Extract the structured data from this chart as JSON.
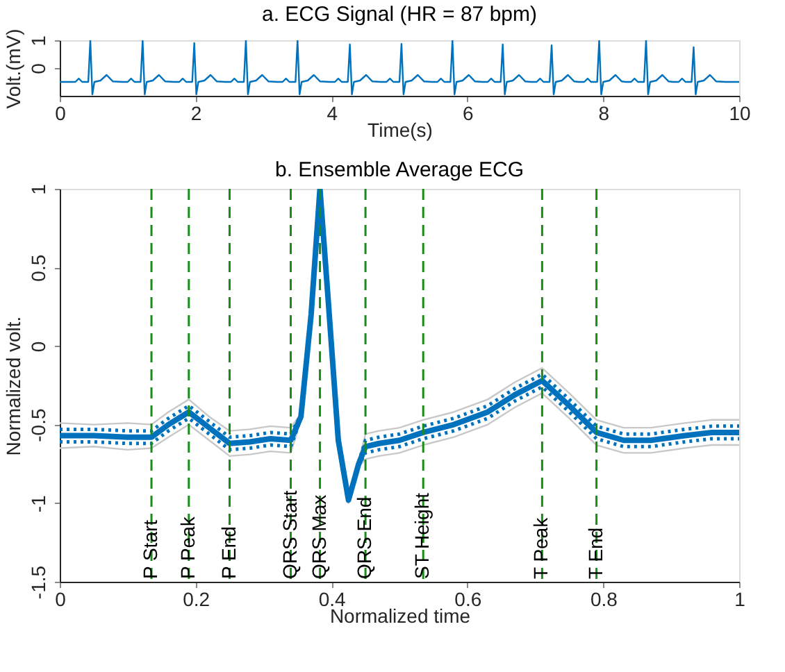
{
  "chart_data": [
    {
      "type": "line",
      "title": "a. ECG Signal (HR = 87 bpm)",
      "xlabel": "Time(s)",
      "ylabel": "Volt.(mV)",
      "xlim": [
        0,
        10
      ],
      "ylim": [
        -1,
        1
      ],
      "xticks": [
        0,
        2,
        4,
        6,
        8,
        10
      ],
      "yticks": [
        0,
        1
      ],
      "grid": false,
      "series": [
        {
          "color": "#0072bd",
          "line_style": "solid",
          "x": [
            0,
            0.15,
            0.23,
            0.28,
            0.33,
            0.42,
            0.45,
            0.48,
            0.51,
            0.6,
            0.69,
            0.78,
            0.92,
            1,
            1.05,
            1.1,
            1.19,
            1.22,
            1.25,
            1.28,
            1.37,
            1.46,
            1.55,
            1.68,
            1.76,
            1.81,
            1.86,
            1.95,
            1.98,
            2.01,
            2.04,
            2.13,
            2.22,
            2.31,
            2.44,
            2.52,
            2.57,
            2.62,
            2.71,
            2.74,
            2.77,
            2.8,
            2.89,
            2.98,
            3.07,
            3.2,
            3.28,
            3.33,
            3.38,
            3.47,
            3.5,
            3.53,
            3.56,
            3.65,
            3.74,
            3.83,
            3.97,
            4.05,
            4.1,
            4.15,
            4.24,
            4.27,
            4.3,
            4.33,
            4.42,
            4.51,
            4.6,
            4.73,
            4.81,
            4.86,
            4.91,
            5,
            5.03,
            5.06,
            5.09,
            5.18,
            5.27,
            5.36,
            5.48,
            5.56,
            5.61,
            5.66,
            5.75,
            5.78,
            5.81,
            5.84,
            5.93,
            6.02,
            6.11,
            6.22,
            6.3,
            6.35,
            6.4,
            6.49,
            6.52,
            6.55,
            6.58,
            6.67,
            6.76,
            6.85,
            6.94,
            7.02,
            7.07,
            7.12,
            7.21,
            7.24,
            7.27,
            7.3,
            7.39,
            7.48,
            7.57,
            7.64,
            7.72,
            7.77,
            7.82,
            7.91,
            7.94,
            7.97,
            8,
            8.09,
            8.18,
            8.27,
            8.33,
            8.41,
            8.46,
            8.51,
            8.6,
            8.63,
            8.66,
            8.69,
            8.78,
            8.87,
            8.96,
            9.03,
            9.11,
            9.16,
            9.21,
            9.3,
            9.33,
            9.36,
            9.39,
            9.48,
            9.57,
            9.66,
            9.8,
            10
          ],
          "values": [
            -0.5,
            -0.5,
            -0.5,
            -0.38,
            -0.5,
            -0.5,
            1,
            -0.95,
            -0.5,
            -0.45,
            -0.25,
            -0.48,
            -0.5,
            -0.5,
            -0.38,
            -0.5,
            -0.5,
            1,
            -0.95,
            -0.5,
            -0.45,
            -0.25,
            -0.48,
            -0.5,
            -0.5,
            -0.38,
            -0.5,
            -0.5,
            0.9,
            -0.95,
            -0.5,
            -0.45,
            -0.25,
            -0.48,
            -0.5,
            -0.5,
            -0.38,
            -0.5,
            -0.5,
            1,
            -0.95,
            -0.5,
            -0.45,
            -0.25,
            -0.48,
            -0.5,
            -0.5,
            -0.38,
            -0.5,
            -0.5,
            1,
            -0.95,
            -0.5,
            -0.45,
            -0.25,
            -0.48,
            -0.5,
            -0.5,
            -0.38,
            -0.5,
            -0.5,
            0.85,
            -0.95,
            -0.5,
            -0.45,
            -0.25,
            -0.48,
            -0.5,
            -0.5,
            -0.38,
            -0.5,
            -0.5,
            0.87,
            -0.95,
            -0.5,
            -0.45,
            -0.25,
            -0.48,
            -0.5,
            -0.5,
            -0.38,
            -0.5,
            -0.5,
            1,
            -0.95,
            -0.5,
            -0.45,
            -0.25,
            -0.48,
            -0.5,
            -0.5,
            -0.38,
            -0.5,
            -0.5,
            0.85,
            -0.95,
            -0.5,
            -0.45,
            -0.25,
            -0.48,
            -0.5,
            -0.5,
            -0.38,
            -0.5,
            -0.5,
            0.82,
            -0.95,
            -0.5,
            -0.45,
            -0.25,
            -0.48,
            -0.5,
            -0.5,
            -0.38,
            -0.5,
            -0.5,
            1,
            -0.95,
            -0.5,
            -0.45,
            -0.25,
            -0.48,
            -0.5,
            -0.5,
            -0.38,
            -0.5,
            -0.5,
            1,
            -0.95,
            -0.5,
            -0.45,
            -0.25,
            -0.48,
            -0.5,
            -0.5,
            -0.38,
            -0.5,
            -0.5,
            0.75,
            -0.95,
            -0.5,
            -0.45,
            -0.25,
            -0.48,
            -0.5,
            -0.5
          ]
        }
      ]
    },
    {
      "type": "line",
      "title": "b. Ensemble Average ECG",
      "xlabel": "Normalized time",
      "ylabel": "Normalized volt.",
      "xlim": [
        0,
        1
      ],
      "ylim": [
        -1.5,
        1
      ],
      "xticks": [
        0,
        0.2,
        0.4,
        0.6,
        0.8,
        1
      ],
      "yticks": [
        -1.5,
        -1,
        -0.5,
        0,
        0.5,
        1
      ],
      "grid": false,
      "x": [
        0,
        0.05,
        0.1,
        0.135,
        0.16,
        0.19,
        0.22,
        0.25,
        0.28,
        0.31,
        0.34,
        0.355,
        0.37,
        0.383,
        0.395,
        0.41,
        0.425,
        0.44,
        0.45,
        0.47,
        0.5,
        0.535,
        0.58,
        0.63,
        0.67,
        0.71,
        0.75,
        0.79,
        0.83,
        0.87,
        0.92,
        0.96,
        1
      ],
      "series": [
        {
          "color": "#c8c8c8",
          "line_style": "solid",
          "values": [
            -0.49,
            -0.5,
            -0.49,
            -0.5,
            -0.42,
            -0.34,
            -0.45,
            -0.54,
            -0.53,
            -0.51,
            -0.52,
            -0.43,
            0.22,
            1.0,
            0.32,
            -0.58,
            -0.96,
            -0.73,
            -0.56,
            -0.54,
            -0.52,
            -0.47,
            -0.42,
            -0.34,
            -0.23,
            -0.14,
            -0.3,
            -0.47,
            -0.52,
            -0.52,
            -0.49,
            -0.47,
            -0.47
          ]
        },
        {
          "color": "#c8c8c8",
          "line_style": "solid",
          "values": [
            -0.65,
            -0.64,
            -0.66,
            -0.65,
            -0.58,
            -0.5,
            -0.6,
            -0.7,
            -0.69,
            -0.67,
            -0.68,
            -0.47,
            0.18,
            1.0,
            0.28,
            -0.62,
            -1.0,
            -0.77,
            -0.72,
            -0.7,
            -0.68,
            -0.63,
            -0.58,
            -0.5,
            -0.39,
            -0.3,
            -0.46,
            -0.63,
            -0.68,
            -0.68,
            -0.65,
            -0.63,
            -0.63
          ]
        },
        {
          "color": "#0072bd",
          "line_style": "dotted",
          "values": [
            -0.53,
            -0.53,
            -0.54,
            -0.54,
            -0.46,
            -0.38,
            -0.48,
            -0.58,
            -0.57,
            -0.55,
            -0.56,
            -0.44,
            0.21,
            1.0,
            0.31,
            -0.59,
            -0.97,
            -0.74,
            -0.6,
            -0.58,
            -0.56,
            -0.51,
            -0.46,
            -0.38,
            -0.27,
            -0.18,
            -0.34,
            -0.51,
            -0.56,
            -0.56,
            -0.53,
            -0.51,
            -0.51
          ]
        },
        {
          "color": "#0072bd",
          "line_style": "dotted",
          "values": [
            -0.61,
            -0.61,
            -0.62,
            -0.62,
            -0.54,
            -0.46,
            -0.56,
            -0.66,
            -0.65,
            -0.63,
            -0.64,
            -0.46,
            0.19,
            1.0,
            0.29,
            -0.61,
            -0.99,
            -0.76,
            -0.68,
            -0.66,
            -0.64,
            -0.59,
            -0.54,
            -0.46,
            -0.35,
            -0.26,
            -0.42,
            -0.59,
            -0.64,
            -0.64,
            -0.61,
            -0.59,
            -0.59
          ]
        },
        {
          "color": "#0072bd",
          "line_style": "solid",
          "values": [
            -0.57,
            -0.57,
            -0.58,
            -0.58,
            -0.5,
            -0.42,
            -0.52,
            -0.62,
            -0.61,
            -0.59,
            -0.6,
            -0.45,
            0.2,
            1.0,
            0.3,
            -0.6,
            -0.98,
            -0.75,
            -0.64,
            -0.62,
            -0.6,
            -0.55,
            -0.5,
            -0.42,
            -0.31,
            -0.22,
            -0.38,
            -0.55,
            -0.6,
            -0.6,
            -0.57,
            -0.55,
            -0.55
          ]
        }
      ],
      "ref_lines": [
        {
          "axis": "x",
          "value": 0.135,
          "label": "P Start",
          "color": "#1a8c1a",
          "line_style": "dashed"
        },
        {
          "axis": "x",
          "value": 0.19,
          "label": "P Peak",
          "color": "#1a8c1a",
          "line_style": "dashed"
        },
        {
          "axis": "x",
          "value": 0.25,
          "label": "P End",
          "color": "#1a8c1a",
          "line_style": "dashed"
        },
        {
          "axis": "x",
          "value": 0.34,
          "label": "QRS Start",
          "color": "#1a8c1a",
          "line_style": "dashed"
        },
        {
          "axis": "x",
          "value": 0.383,
          "label": "QRS Max",
          "color": "#1a8c1a",
          "line_style": "dashed"
        },
        {
          "axis": "x",
          "value": 0.45,
          "label": "QRS End",
          "color": "#1a8c1a",
          "line_style": "dashed"
        },
        {
          "axis": "x",
          "value": 0.535,
          "label": "ST Height",
          "color": "#1a8c1a",
          "line_style": "dashed"
        },
        {
          "axis": "x",
          "value": 0.71,
          "label": "T Peak",
          "color": "#1a8c1a",
          "line_style": "dashed"
        },
        {
          "axis": "x",
          "value": 0.79,
          "label": "T End",
          "color": "#1a8c1a",
          "line_style": "dashed"
        }
      ]
    }
  ]
}
